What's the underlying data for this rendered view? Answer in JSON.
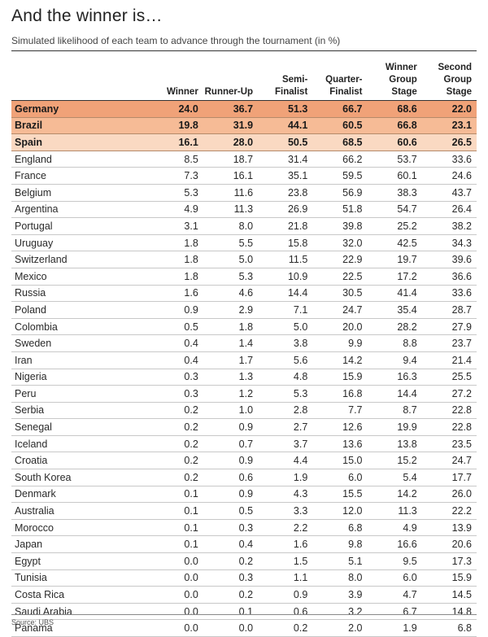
{
  "title": "And the winner is…",
  "subtitle": "Simulated likelihood of each team to advance through the tournament (in %)",
  "source": "Source: UBS",
  "colors": {
    "highlight_1": "#f0a278",
    "highlight_2": "#f6bb96",
    "highlight_3": "#fad9c2"
  },
  "chart_data": {
    "type": "table",
    "columns": [
      [
        "",
        ""
      ],
      [
        "Winner"
      ],
      [
        "Runner-Up"
      ],
      [
        "Semi-",
        "Finalist"
      ],
      [
        "Quarter-",
        "Finalist"
      ],
      [
        "Winner",
        "Group",
        "Stage"
      ],
      [
        "Second",
        "Group",
        "Stage"
      ]
    ],
    "highlighted_rows": 3,
    "rows": [
      [
        "Germany",
        "24.0",
        "36.7",
        "51.3",
        "66.7",
        "68.6",
        "22.0"
      ],
      [
        "Brazil",
        "19.8",
        "31.9",
        "44.1",
        "60.5",
        "66.8",
        "23.1"
      ],
      [
        "Spain",
        "16.1",
        "28.0",
        "50.5",
        "68.5",
        "60.6",
        "26.5"
      ],
      [
        "England",
        "8.5",
        "18.7",
        "31.4",
        "66.2",
        "53.7",
        "33.6"
      ],
      [
        "France",
        "7.3",
        "16.1",
        "35.1",
        "59.5",
        "60.1",
        "24.6"
      ],
      [
        "Belgium",
        "5.3",
        "11.6",
        "23.8",
        "56.9",
        "38.3",
        "43.7"
      ],
      [
        "Argentina",
        "4.9",
        "11.3",
        "26.9",
        "51.8",
        "54.7",
        "26.4"
      ],
      [
        "Portugal",
        "3.1",
        "8.0",
        "21.8",
        "39.8",
        "25.2",
        "38.2"
      ],
      [
        "Uruguay",
        "1.8",
        "5.5",
        "15.8",
        "32.0",
        "42.5",
        "34.3"
      ],
      [
        "Switzerland",
        "1.8",
        "5.0",
        "11.5",
        "22.9",
        "19.7",
        "39.6"
      ],
      [
        "Mexico",
        "1.8",
        "5.3",
        "10.9",
        "22.5",
        "17.2",
        "36.6"
      ],
      [
        "Russia",
        "1.6",
        "4.6",
        "14.4",
        "30.5",
        "41.4",
        "33.6"
      ],
      [
        "Poland",
        "0.9",
        "2.9",
        "7.1",
        "24.7",
        "35.4",
        "28.7"
      ],
      [
        "Colombia",
        "0.5",
        "1.8",
        "5.0",
        "20.0",
        "28.2",
        "27.9"
      ],
      [
        "Sweden",
        "0.4",
        "1.4",
        "3.8",
        "9.9",
        "8.8",
        "23.7"
      ],
      [
        "Iran",
        "0.4",
        "1.7",
        "5.6",
        "14.2",
        "9.4",
        "21.4"
      ],
      [
        "Nigeria",
        "0.3",
        "1.3",
        "4.8",
        "15.9",
        "16.3",
        "25.5"
      ],
      [
        "Peru",
        "0.3",
        "1.2",
        "5.3",
        "16.8",
        "14.4",
        "27.2"
      ],
      [
        "Serbia",
        "0.2",
        "1.0",
        "2.8",
        "7.7",
        "8.7",
        "22.8"
      ],
      [
        "Senegal",
        "0.2",
        "0.9",
        "2.7",
        "12.6",
        "19.9",
        "22.8"
      ],
      [
        "Iceland",
        "0.2",
        "0.7",
        "3.7",
        "13.6",
        "13.8",
        "23.5"
      ],
      [
        "Croatia",
        "0.2",
        "0.9",
        "4.4",
        "15.0",
        "15.2",
        "24.7"
      ],
      [
        "South Korea",
        "0.2",
        "0.6",
        "1.9",
        "6.0",
        "5.4",
        "17.7"
      ],
      [
        "Denmark",
        "0.1",
        "0.9",
        "4.3",
        "15.5",
        "14.2",
        "26.0"
      ],
      [
        "Australia",
        "0.1",
        "0.5",
        "3.3",
        "12.0",
        "11.3",
        "22.2"
      ],
      [
        "Morocco",
        "0.1",
        "0.3",
        "2.2",
        "6.8",
        "4.9",
        "13.9"
      ],
      [
        "Japan",
        "0.1",
        "0.4",
        "1.6",
        "9.8",
        "16.6",
        "20.6"
      ],
      [
        "Egypt",
        "0.0",
        "0.2",
        "1.5",
        "5.1",
        "9.5",
        "17.3"
      ],
      [
        "Tunisia",
        "0.0",
        "0.3",
        "1.1",
        "8.0",
        "6.0",
        "15.9"
      ],
      [
        "Costa Rica",
        "0.0",
        "0.2",
        "0.9",
        "3.9",
        "4.7",
        "14.5"
      ],
      [
        "Saudi Arabia",
        "0.0",
        "0.1",
        "0.6",
        "3.2",
        "6.7",
        "14.8"
      ],
      [
        "Panama",
        "0.0",
        "0.0",
        "0.2",
        "2.0",
        "1.9",
        "6.8"
      ]
    ]
  }
}
